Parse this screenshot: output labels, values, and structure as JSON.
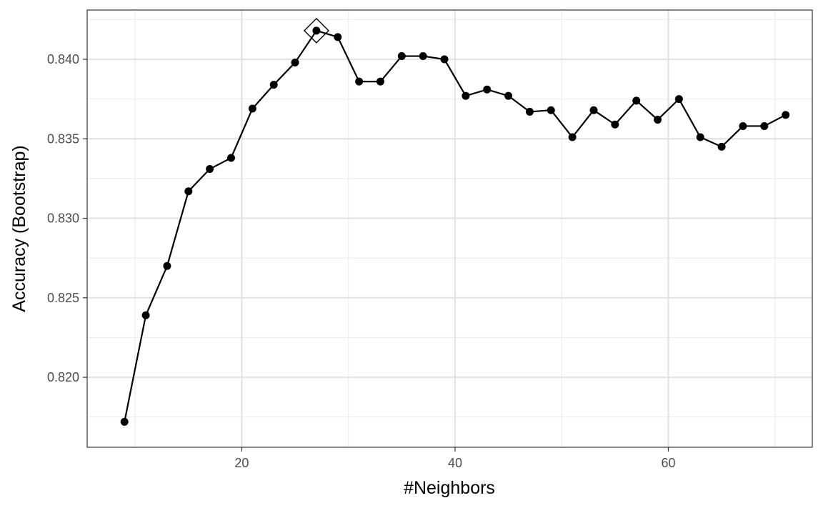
{
  "chart_data": {
    "type": "line",
    "xlabel": "#Neighbors",
    "ylabel": "Accuracy (Bootstrap)",
    "xlim": [
      5.5,
      73.5
    ],
    "ylim": [
      0.8156,
      0.8431
    ],
    "x_ticks": [
      20,
      40,
      60
    ],
    "x_tick_labels": [
      "20",
      "40",
      "60"
    ],
    "y_ticks": [
      0.82,
      0.825,
      0.83,
      0.835,
      0.84
    ],
    "y_tick_labels": [
      "0.820",
      "0.825",
      "0.830",
      "0.835",
      "0.840"
    ],
    "grid": true,
    "series": [
      {
        "x": [
          9,
          11,
          13,
          15,
          17,
          19,
          21,
          23,
          25,
          27,
          29,
          31,
          33,
          35,
          37,
          39,
          41,
          43,
          45,
          47,
          49,
          51,
          53,
          55,
          57,
          59,
          61,
          63,
          65,
          67,
          69,
          71
        ],
        "values": [
          0.8172,
          0.8239,
          0.827,
          0.8317,
          0.8331,
          0.8338,
          0.8369,
          0.8384,
          0.8398,
          0.8418,
          0.8414,
          0.8386,
          0.8386,
          0.8402,
          0.8402,
          0.84,
          0.8377,
          0.8381,
          0.8377,
          0.8367,
          0.8368,
          0.8351,
          0.8368,
          0.8359,
          0.8374,
          0.8362,
          0.8375,
          0.8351,
          0.8345,
          0.8358,
          0.8358,
          0.8365
        ],
        "color": "#000000"
      }
    ],
    "highlight": {
      "x": 27,
      "y": 0.8418,
      "marker": "diamond"
    }
  }
}
